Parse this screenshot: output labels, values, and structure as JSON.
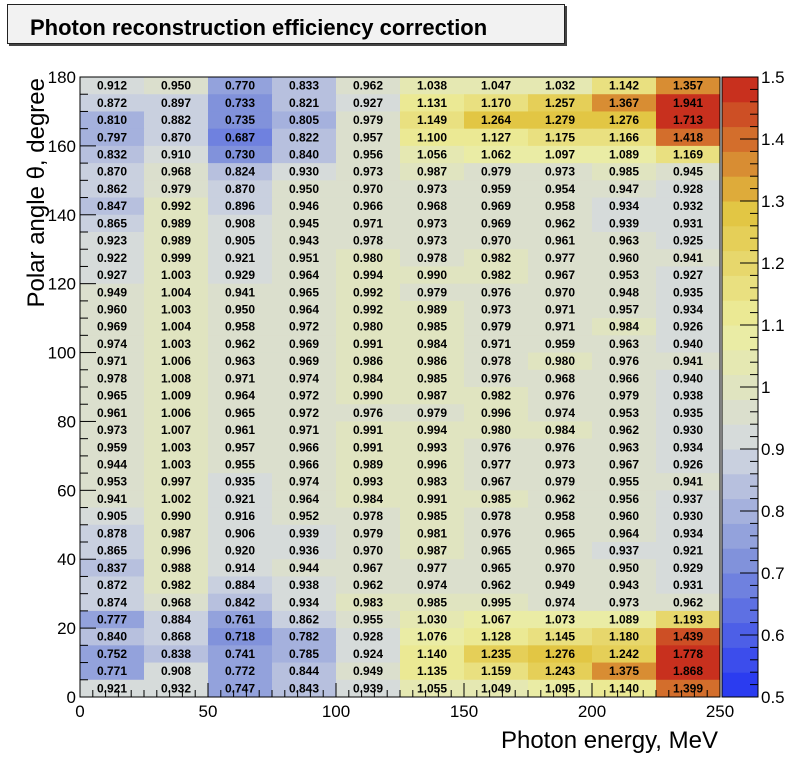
{
  "chart_data": {
    "type": "heatmap",
    "title": "Photon reconstruction efficiency correction",
    "xlabel": "Photon energy, MeV",
    "ylabel": "Polar angle θ, degree",
    "xlim": [
      0,
      250
    ],
    "ylim": [
      0,
      180
    ],
    "x_edges": [
      0,
      25,
      50,
      75,
      100,
      125,
      150,
      175,
      200,
      225,
      250
    ],
    "y_bin_width": 5,
    "x_ticks": [
      "0",
      "50",
      "100",
      "150",
      "200",
      "250"
    ],
    "y_ticks": [
      "0",
      "20",
      "40",
      "60",
      "80",
      "100",
      "120",
      "140",
      "160",
      "180"
    ],
    "z_range": [
      0.5,
      1.5
    ],
    "z_ticks": [
      "0.5",
      "0.6",
      "0.7",
      "0.8",
      "0.9",
      "1",
      "1.1",
      "1.2",
      "1.3",
      "1.4",
      "1.5"
    ],
    "colorscale": [
      "#2b3cf0",
      "#7d8fdb",
      "#d4d9df",
      "#eceea0",
      "#e2c440",
      "#c8301e"
    ],
    "rows_top_to_bottom": [
      [
        "0.912",
        "0.950",
        "0.770",
        "0.833",
        "0.962",
        "1.038",
        "1.047",
        "1.032",
        "1.142",
        "1.357"
      ],
      [
        "0.872",
        "0.897",
        "0.733",
        "0.821",
        "0.927",
        "1.131",
        "1.170",
        "1.257",
        "1.367",
        "1.941"
      ],
      [
        "0.810",
        "0.882",
        "0.735",
        "0.805",
        "0.979",
        "1.149",
        "1.264",
        "1.279",
        "1.276",
        "1.713"
      ],
      [
        "0.797",
        "0.870",
        "0.687",
        "0.822",
        "0.957",
        "1.100",
        "1.127",
        "1.175",
        "1.166",
        "1.418"
      ],
      [
        "0.832",
        "0.910",
        "0.730",
        "0.840",
        "0.956",
        "1.056",
        "1.062",
        "1.097",
        "1.089",
        "1.169"
      ],
      [
        "0.870",
        "0.968",
        "0.824",
        "0.930",
        "0.973",
        "0.987",
        "0.979",
        "0.973",
        "0.985",
        "0.945"
      ],
      [
        "0.862",
        "0.979",
        "0.870",
        "0.950",
        "0.970",
        "0.973",
        "0.959",
        "0.954",
        "0.947",
        "0.928"
      ],
      [
        "0.847",
        "0.992",
        "0.896",
        "0.946",
        "0.966",
        "0.968",
        "0.969",
        "0.958",
        "0.934",
        "0.932"
      ],
      [
        "0.865",
        "0.989",
        "0.908",
        "0.945",
        "0.971",
        "0.973",
        "0.969",
        "0.962",
        "0.939",
        "0.931"
      ],
      [
        "0.923",
        "0.989",
        "0.905",
        "0.943",
        "0.978",
        "0.973",
        "0.970",
        "0.961",
        "0.963",
        "0.925"
      ],
      [
        "0.922",
        "0.999",
        "0.921",
        "0.951",
        "0.980",
        "0.978",
        "0.982",
        "0.977",
        "0.960",
        "0.941"
      ],
      [
        "0.927",
        "1.003",
        "0.929",
        "0.964",
        "0.994",
        "0.990",
        "0.982",
        "0.967",
        "0.953",
        "0.927"
      ],
      [
        "0.949",
        "1.004",
        "0.941",
        "0.965",
        "0.992",
        "0.979",
        "0.976",
        "0.970",
        "0.948",
        "0.935"
      ],
      [
        "0.960",
        "1.003",
        "0.950",
        "0.964",
        "0.992",
        "0.989",
        "0.973",
        "0.971",
        "0.957",
        "0.934"
      ],
      [
        "0.969",
        "1.004",
        "0.958",
        "0.972",
        "0.980",
        "0.985",
        "0.979",
        "0.971",
        "0.984",
        "0.926"
      ],
      [
        "0.974",
        "1.003",
        "0.962",
        "0.969",
        "0.991",
        "0.984",
        "0.971",
        "0.959",
        "0.963",
        "0.940"
      ],
      [
        "0.971",
        "1.006",
        "0.963",
        "0.969",
        "0.986",
        "0.986",
        "0.978",
        "0.980",
        "0.976",
        "0.941"
      ],
      [
        "0.978",
        "1.008",
        "0.971",
        "0.974",
        "0.984",
        "0.985",
        "0.976",
        "0.968",
        "0.966",
        "0.940"
      ],
      [
        "0.965",
        "1.009",
        "0.964",
        "0.972",
        "0.990",
        "0.987",
        "0.982",
        "0.976",
        "0.979",
        "0.938"
      ],
      [
        "0.961",
        "1.006",
        "0.965",
        "0.972",
        "0.976",
        "0.979",
        "0.996",
        "0.974",
        "0.953",
        "0.935"
      ],
      [
        "0.973",
        "1.007",
        "0.961",
        "0.971",
        "0.991",
        "0.994",
        "0.980",
        "0.984",
        "0.962",
        "0.930"
      ],
      [
        "0.959",
        "1.003",
        "0.957",
        "0.966",
        "0.991",
        "0.993",
        "0.976",
        "0.976",
        "0.963",
        "0.934"
      ],
      [
        "0.944",
        "1.003",
        "0.955",
        "0.966",
        "0.989",
        "0.996",
        "0.977",
        "0.973",
        "0.967",
        "0.926"
      ],
      [
        "0.953",
        "0.997",
        "0.935",
        "0.974",
        "0.993",
        "0.983",
        "0.967",
        "0.979",
        "0.955",
        "0.941"
      ],
      [
        "0.941",
        "1.002",
        "0.921",
        "0.964",
        "0.984",
        "0.991",
        "0.985",
        "0.962",
        "0.956",
        "0.937"
      ],
      [
        "0.905",
        "0.990",
        "0.916",
        "0.952",
        "0.978",
        "0.985",
        "0.978",
        "0.958",
        "0.960",
        "0.930"
      ],
      [
        "0.878",
        "0.987",
        "0.906",
        "0.939",
        "0.979",
        "0.981",
        "0.976",
        "0.965",
        "0.964",
        "0.934"
      ],
      [
        "0.865",
        "0.996",
        "0.920",
        "0.936",
        "0.970",
        "0.987",
        "0.965",
        "0.965",
        "0.937",
        "0.921"
      ],
      [
        "0.837",
        "0.988",
        "0.914",
        "0.944",
        "0.967",
        "0.977",
        "0.965",
        "0.970",
        "0.950",
        "0.929"
      ],
      [
        "0.872",
        "0.982",
        "0.884",
        "0.938",
        "0.962",
        "0.974",
        "0.962",
        "0.949",
        "0.943",
        "0.931"
      ],
      [
        "0.874",
        "0.968",
        "0.842",
        "0.934",
        "0.983",
        "0.985",
        "0.995",
        "0.974",
        "0.973",
        "0.962"
      ],
      [
        "0.777",
        "0.884",
        "0.761",
        "0.862",
        "0.955",
        "1.030",
        "1.067",
        "1.073",
        "1.089",
        "1.193"
      ],
      [
        "0.840",
        "0.868",
        "0.718",
        "0.782",
        "0.928",
        "1.076",
        "1.128",
        "1.145",
        "1.180",
        "1.439"
      ],
      [
        "0.752",
        "0.838",
        "0.741",
        "0.785",
        "0.924",
        "1.140",
        "1.235",
        "1.276",
        "1.242",
        "1.778"
      ],
      [
        "0.771",
        "0.908",
        "0.772",
        "0.844",
        "0.949",
        "1.135",
        "1.159",
        "1.243",
        "1.375",
        "1.868"
      ],
      [
        "0.921",
        "0.932",
        "0.747",
        "0.843",
        "0.939",
        "1.055",
        "1.049",
        "1.095",
        "1.140",
        "1.399"
      ]
    ]
  }
}
